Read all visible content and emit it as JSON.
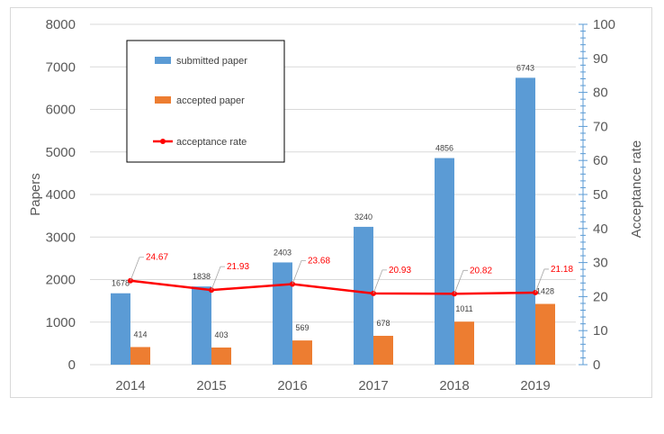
{
  "colors": {
    "submitted": "#5b9bd5",
    "accepted": "#ed7d31",
    "rate": "#ff0000",
    "grid": "#d9d9d9",
    "right_axis": "#5b9bd5"
  },
  "chart_data": {
    "type": "bar",
    "categories": [
      "2014",
      "2015",
      "2016",
      "2017",
      "2018",
      "2019"
    ],
    "series": [
      {
        "name": "submitted paper",
        "type": "bar",
        "axis": "left",
        "values": [
          1678,
          1838,
          2403,
          3240,
          4856,
          6743
        ]
      },
      {
        "name": "accepted paper",
        "type": "bar",
        "axis": "left",
        "values": [
          414,
          403,
          569,
          678,
          1011,
          1428
        ]
      },
      {
        "name": "acceptance rate",
        "type": "line",
        "axis": "right",
        "values": [
          24.67,
          21.93,
          23.68,
          20.93,
          20.82,
          21.18
        ]
      }
    ],
    "ylabel": "Papers",
    "y2label": "Acceptance rate",
    "ylim": [
      0,
      8000
    ],
    "y2lim": [
      0,
      100
    ],
    "yticks": [
      "0",
      "1000",
      "2000",
      "3000",
      "4000",
      "5000",
      "6000",
      "7000",
      "8000"
    ],
    "y2ticks": [
      "0",
      "10",
      "20",
      "30",
      "40",
      "50",
      "60",
      "70",
      "80",
      "90",
      "100"
    ],
    "grid": true,
    "legend_position": "top-left"
  }
}
